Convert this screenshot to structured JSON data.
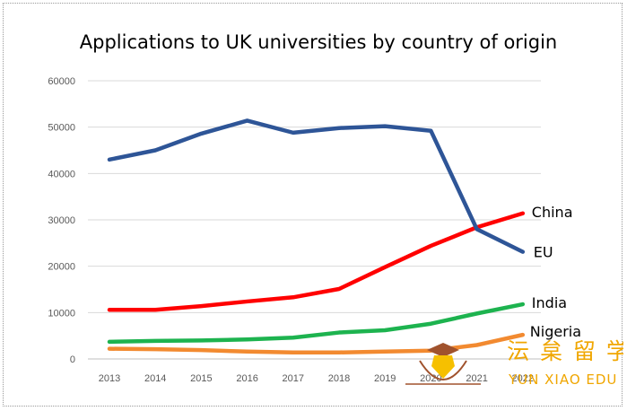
{
  "chart_data": {
    "type": "line",
    "title": "Applications to UK universities by country of origin",
    "xlabel": "",
    "ylabel": "",
    "x": [
      "2013",
      "2014",
      "2015",
      "2016",
      "2017",
      "2018",
      "2019",
      "2020",
      "2021",
      "2022"
    ],
    "ylim": [
      0,
      60000
    ],
    "yticks": [
      0,
      10000,
      20000,
      30000,
      40000,
      50000,
      60000
    ],
    "grid": "horizontal",
    "legend": "labels at line ends (right)",
    "series": [
      {
        "name": "China",
        "color": "#ff0000",
        "values": [
          10600,
          10600,
          11400,
          12400,
          13300,
          15100,
          19800,
          24400,
          28400,
          31400
        ]
      },
      {
        "name": "EU",
        "color": "#2e5597",
        "values": [
          43000,
          45000,
          48600,
          51400,
          48800,
          49800,
          50200,
          49200,
          28000,
          23100
        ]
      },
      {
        "name": "India",
        "color": "#1db34f",
        "values": [
          3700,
          3900,
          4000,
          4200,
          4600,
          5700,
          6200,
          7600,
          9800,
          11800
        ]
      },
      {
        "name": "Nigeria",
        "color": "#f28a30",
        "values": [
          2200,
          2100,
          1900,
          1600,
          1400,
          1400,
          1600,
          1800,
          3000,
          5200
        ]
      }
    ]
  },
  "watermark": {
    "chinese": "沄 枲 留 学",
    "english": "YUN XIAO EDU",
    "icon": "graduation-cap-logo",
    "color": "#f0a600"
  }
}
